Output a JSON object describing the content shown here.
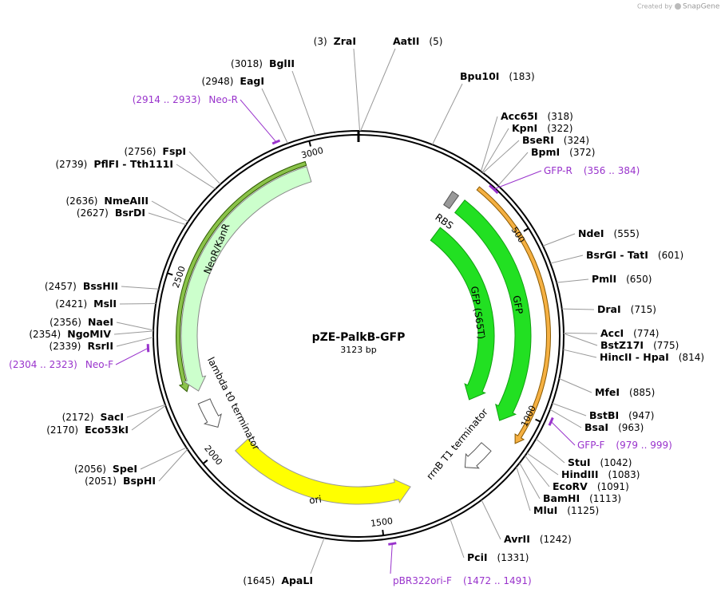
{
  "header": {
    "credit": "Created by",
    "brand": "SnapGene"
  },
  "plasmid": {
    "name": "pZE-PalkB-GFP",
    "size": {
      "value": 3123,
      "label": "3123 bp"
    },
    "ticks": [
      500,
      1000,
      1500,
      2000,
      2500,
      3000
    ]
  },
  "sites": [
    {
      "name": "ZraI",
      "position": {
        "value": 3,
        "label": "(3)"
      }
    },
    {
      "name": "AatII",
      "position": {
        "value": 5,
        "label": "(5)"
      }
    },
    {
      "name": "Bpu10I",
      "position": {
        "value": 183,
        "label": "(183)"
      }
    },
    {
      "name": "Acc65I",
      "position": {
        "value": 318,
        "label": "(318)"
      }
    },
    {
      "name": "KpnI",
      "position": {
        "value": 322,
        "label": "(322)"
      }
    },
    {
      "name": "BseRI",
      "position": {
        "value": 324,
        "label": "(324)"
      }
    },
    {
      "name": "BpmI",
      "position": {
        "value": 372,
        "label": "(372)"
      }
    },
    {
      "name": "NdeI",
      "position": {
        "value": 555,
        "label": "(555)"
      }
    },
    {
      "name": "BsrGI - TatI",
      "position": {
        "value": 601,
        "label": "(601)"
      }
    },
    {
      "name": "PmlI",
      "position": {
        "value": 650,
        "label": "(650)"
      }
    },
    {
      "name": "DraI",
      "position": {
        "value": 715,
        "label": "(715)"
      }
    },
    {
      "name": "AccI",
      "position": {
        "value": 774,
        "label": "(774)"
      }
    },
    {
      "name": "BstZ17I",
      "position": {
        "value": 775,
        "label": "(775)"
      }
    },
    {
      "name": "HincII - HpaI",
      "position": {
        "value": 814,
        "label": "(814)"
      }
    },
    {
      "name": "MfeI",
      "position": {
        "value": 885,
        "label": "(885)"
      }
    },
    {
      "name": "BstBI",
      "position": {
        "value": 947,
        "label": "(947)"
      }
    },
    {
      "name": "BsaI",
      "position": {
        "value": 963,
        "label": "(963)"
      }
    },
    {
      "name": "StuI",
      "position": {
        "value": 1042,
        "label": "(1042)"
      }
    },
    {
      "name": "HindIII",
      "position": {
        "value": 1083,
        "label": "(1083)"
      }
    },
    {
      "name": "EcoRV",
      "position": {
        "value": 1091,
        "label": "(1091)"
      }
    },
    {
      "name": "BamHI",
      "position": {
        "value": 1113,
        "label": "(1113)"
      }
    },
    {
      "name": "MluI",
      "position": {
        "value": 1125,
        "label": "(1125)"
      }
    },
    {
      "name": "AvrII",
      "position": {
        "value": 1242,
        "label": "(1242)"
      }
    },
    {
      "name": "PciI",
      "position": {
        "value": 1331,
        "label": "(1331)"
      }
    },
    {
      "name": "ApaLI",
      "position": {
        "value": 1645,
        "label": "(1645)"
      }
    },
    {
      "name": "BspHI",
      "position": {
        "value": 2051,
        "label": "(2051)"
      }
    },
    {
      "name": "SpeI",
      "position": {
        "value": 2056,
        "label": "(2056)"
      }
    },
    {
      "name": "Eco53kI",
      "position": {
        "value": 2170,
        "label": "(2170)"
      }
    },
    {
      "name": "SacI",
      "position": {
        "value": 2172,
        "label": "(2172)"
      }
    },
    {
      "name": "RsrII",
      "position": {
        "value": 2339,
        "label": "(2339)"
      }
    },
    {
      "name": "NgoMIV",
      "position": {
        "value": 2354,
        "label": "(2354)"
      }
    },
    {
      "name": "NaeI",
      "position": {
        "value": 2356,
        "label": "(2356)"
      }
    },
    {
      "name": "MslI",
      "position": {
        "value": 2421,
        "label": "(2421)"
      }
    },
    {
      "name": "BssHII",
      "position": {
        "value": 2457,
        "label": "(2457)"
      }
    },
    {
      "name": "BsrDI",
      "position": {
        "value": 2627,
        "label": "(2627)"
      }
    },
    {
      "name": "NmeAIII",
      "position": {
        "value": 2636,
        "label": "(2636)"
      }
    },
    {
      "name": "PflFI - Tth111I",
      "position": {
        "value": 2739,
        "label": "(2739)"
      }
    },
    {
      "name": "FspI",
      "position": {
        "value": 2756,
        "label": "(2756)"
      }
    },
    {
      "name": "EagI",
      "position": {
        "value": 2948,
        "label": "(2948)"
      }
    },
    {
      "name": "BglII",
      "position": {
        "value": 3018,
        "label": "(3018)"
      }
    }
  ],
  "primers": [
    {
      "name": "GFP-R",
      "start": 356,
      "end": 384,
      "range": "(356 .. 384)"
    },
    {
      "name": "GFP-F",
      "start": 979,
      "end": 999,
      "range": "(979 .. 999)"
    },
    {
      "name": "pBR322ori-F",
      "start": 1472,
      "end": 1491,
      "range": "(1472 .. 1491)"
    },
    {
      "name": "Neo-F",
      "start": 2304,
      "end": 2323,
      "range": "(2304 .. 2323)"
    },
    {
      "name": "Neo-R",
      "start": 2914,
      "end": 2933,
      "range": "(2914 .. 2933)"
    }
  ],
  "features": [
    {
      "label": "RBS"
    },
    {
      "label": "GFP"
    },
    {
      "label": "GFP (S65T)"
    },
    {
      "label": "rrnB T1 terminator"
    },
    {
      "label": "ori"
    },
    {
      "label": "lambda t0 terminator"
    },
    {
      "label": "NeoR/KanR"
    }
  ]
}
